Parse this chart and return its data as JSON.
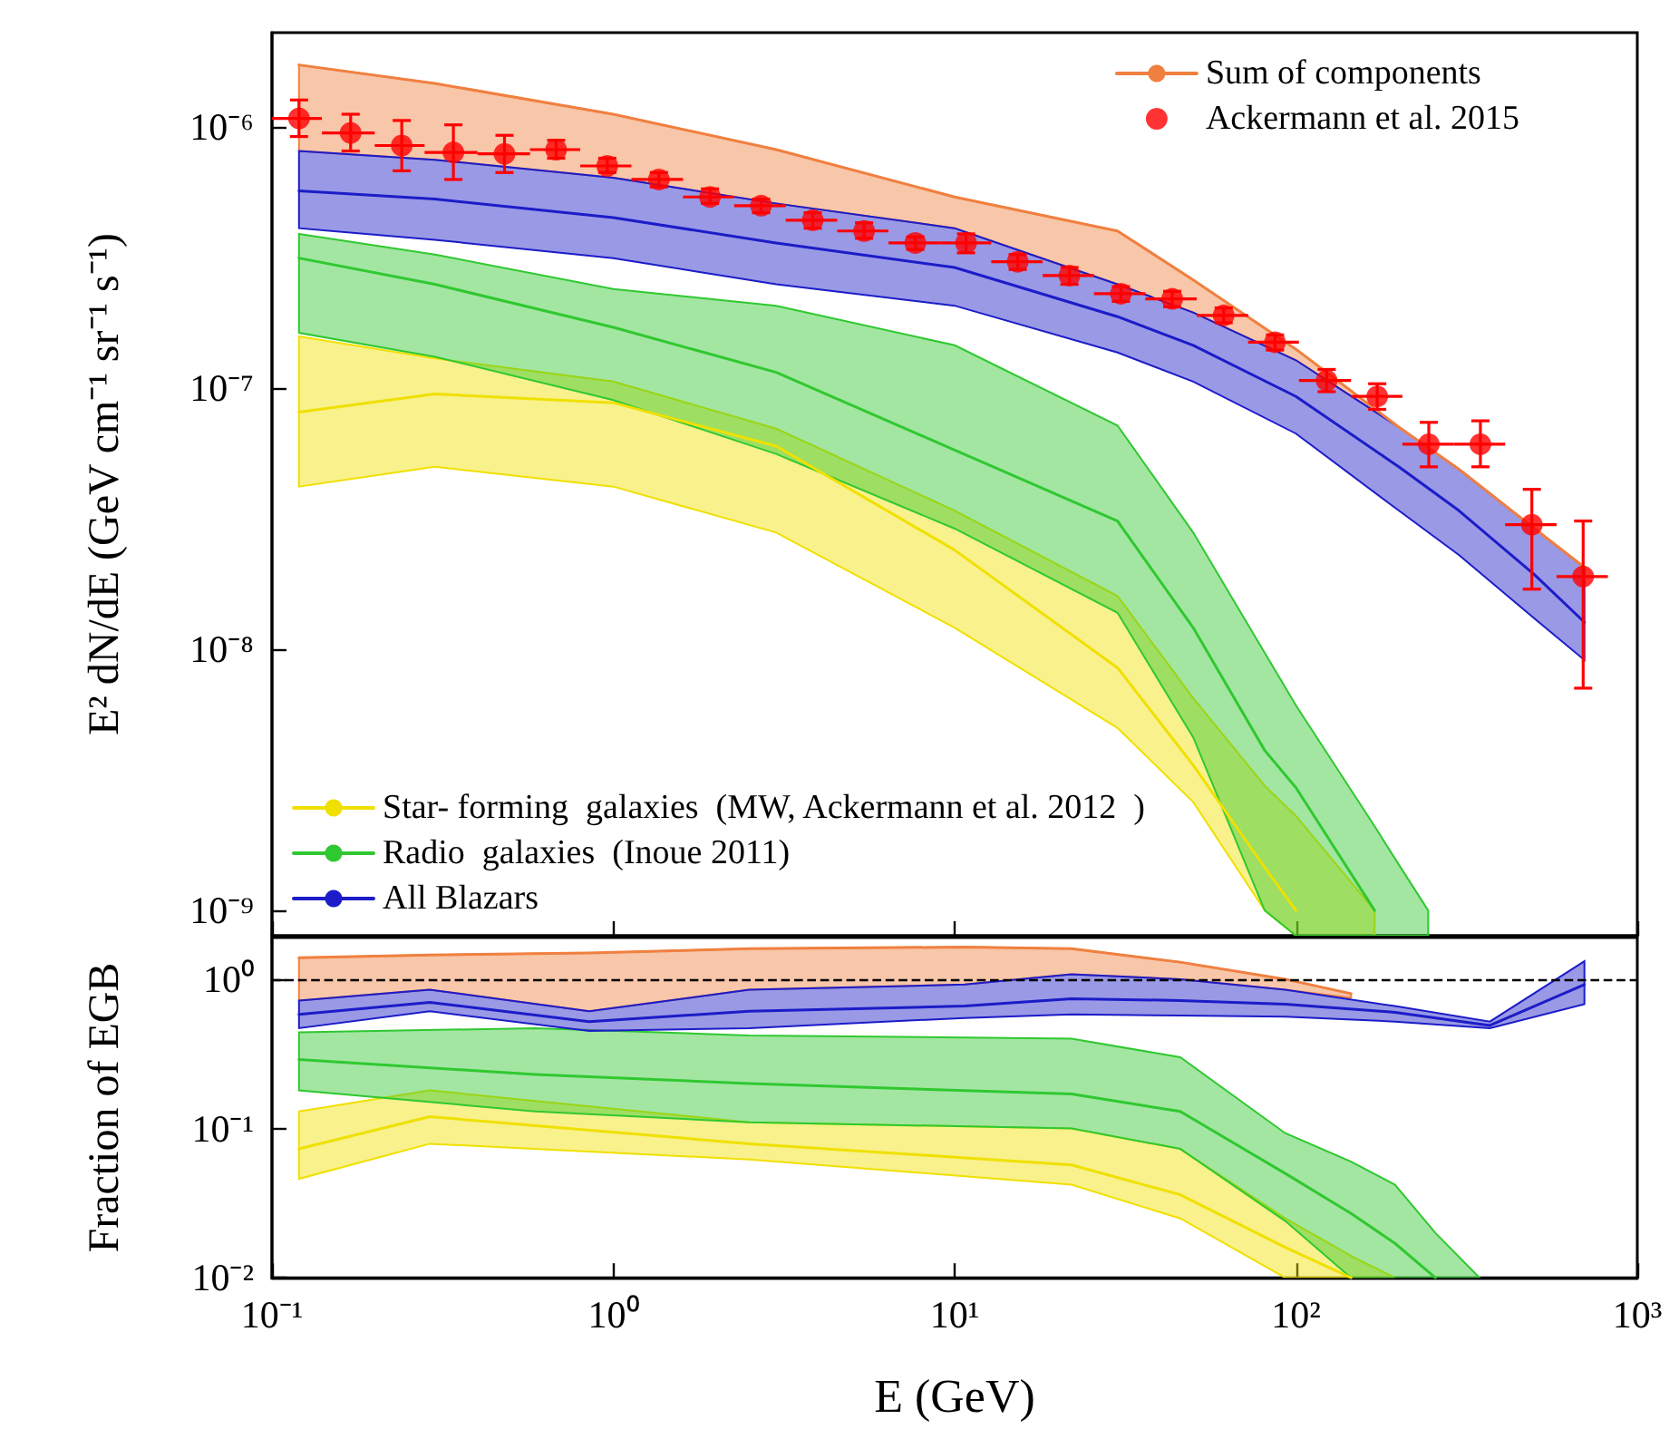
{
  "chart_data": [
    {
      "type": "line",
      "ylabel": "E² dN/dE (GeV cm⁻¹ sr⁻¹ s⁻¹)",
      "log": "xy",
      "marker": "none",
      "legend": "top right",
      "tick_labels": "y",
      "xlim": [
        0.1,
        1000
      ],
      "xticks": [
        {
          "value": 0.1,
          "label": null
        },
        {
          "value": 1,
          "label": null
        },
        {
          "value": 10,
          "label": null
        },
        {
          "value": 100,
          "label": null
        },
        {
          "value": 1000,
          "label": null
        }
      ],
      "ylim": [
        8e-10,
        2.3e-06
      ],
      "yticks": [
        {
          "value": 1e-09,
          "label": "10⁻⁹"
        },
        {
          "value": 1e-08,
          "label": "10⁻⁸"
        },
        {
          "value": 1e-07,
          "label": "10⁻⁷"
        },
        {
          "value": 1e-06,
          "label": "10⁻⁶"
        }
      ],
      "series": [
        {
          "name": "Sum of components",
          "color": "#f08040",
          "x": [
            0.12,
            0.3,
            1,
            3,
            10,
            30,
            50,
            100,
            200,
            300,
            500,
            700
          ],
          "values": [
            1.73e-06,
            1.47e-06,
            1.12e-06,
            8.2e-07,
            5.4e-07,
            4e-07,
            2.6e-07,
            1.41e-07,
            7.1e-08,
            4.9e-08,
            2.9e-08,
            2.06e-08
          ],
          "upper": [
            1.73e-06,
            1.47e-06,
            1.12e-06,
            8.2e-07,
            5.4e-07,
            4e-07,
            2.6e-07,
            1.41e-07,
            7.1e-08,
            4.9e-08,
            2.9e-08,
            2.06e-08
          ],
          "lower": [
            8.1e-07,
            7.5e-07,
            6.4e-07,
            5.1e-07,
            4.1e-07,
            2.5e-07,
            1.95e-07,
            1.28e-07,
            7.1e-08,
            4.9e-08,
            2.9e-08,
            2.06e-08
          ]
        },
        {
          "name": "Ackermann et al. 2015",
          "type": "scatter",
          "marker": "circle",
          "color": "#ff0000",
          "x": [
            0.12,
            0.17,
            0.24,
            0.34,
            0.48,
            0.68,
            0.96,
            1.36,
            1.92,
            2.71,
            3.84,
            5.43,
            7.67,
            10.8,
            15.3,
            21.7,
            30.7,
            43.4,
            61.4,
            86.8,
            123,
            173,
            245,
            347,
            491,
            694
          ],
          "values": [
            1.08e-06,
            9.5e-07,
            8.5e-07,
            8e-07,
            7.9e-07,
            8.2e-07,
            7.1e-07,
            6.3e-07,
            5.4e-07,
            5e-07,
            4.4e-07,
            4e-07,
            3.6e-07,
            3.6e-07,
            3.05e-07,
            2.7e-07,
            2.3e-07,
            2.2e-07,
            1.9e-07,
            1.5e-07,
            1.07e-07,
            9.3e-08,
            6.1e-08,
            6.1e-08,
            3e-08,
            1.9e-08
          ],
          "errors": [
            [
              9.2e-07,
              1.27e-06
            ],
            [
              8.1e-07,
              1.12e-06
            ],
            [
              6.8e-07,
              1.06e-06
            ],
            [
              6.3e-07,
              1.02e-06
            ],
            [
              6.7e-07,
              9.3e-07
            ],
            [
              7.6e-07,
              8.9e-07
            ],
            [
              6.7e-07,
              7.6e-07
            ],
            [
              5.9e-07,
              6.7e-07
            ],
            [
              5.1e-07,
              5.8e-07
            ],
            [
              4.7e-07,
              5.3e-07
            ],
            [
              4.1e-07,
              4.7e-07
            ],
            [
              3.75e-07,
              4.3e-07
            ],
            [
              3.4e-07,
              3.8e-07
            ],
            [
              3.3e-07,
              3.9e-07
            ],
            [
              2.85e-07,
              3.25e-07
            ],
            [
              2.5e-07,
              2.9e-07
            ],
            [
              2.15e-07,
              2.45e-07
            ],
            [
              2.05e-07,
              2.35e-07
            ],
            [
              1.78e-07,
              2.03e-07
            ],
            [
              1.4e-07,
              1.6e-07
            ],
            [
              9.7e-08,
              1.18e-07
            ],
            [
              8.3e-08,
              1.04e-07
            ],
            [
              5e-08,
              7.4e-08
            ],
            [
              5e-08,
              7.5e-08
            ],
            [
              1.7e-08,
              4.1e-08
            ],
            [
              7.1e-09,
              3.1e-08
            ]
          ],
          "xerrors": [
            [
              0.1,
              0.14
            ],
            [
              0.14,
              0.2
            ],
            [
              0.2,
              0.28
            ],
            [
              0.28,
              0.4
            ],
            [
              0.4,
              0.57
            ],
            [
              0.57,
              0.8
            ],
            [
              0.8,
              1.13
            ],
            [
              1.13,
              1.6
            ],
            [
              1.6,
              2.26
            ],
            [
              2.26,
              3.2
            ],
            [
              3.2,
              4.53
            ],
            [
              4.53,
              6.4
            ],
            [
              6.4,
              9.05
            ],
            [
              9.05,
              12.8
            ],
            [
              12.8,
              18.1
            ],
            [
              18.1,
              25.6
            ],
            [
              25.6,
              36.2
            ],
            [
              36.2,
              51.2
            ],
            [
              51.2,
              72.4
            ],
            [
              72.4,
              102
            ],
            [
              102,
              145
            ],
            [
              145,
              205
            ],
            [
              205,
              290
            ],
            [
              290,
              410
            ],
            [
              410,
              580
            ],
            [
              580,
              820
            ]
          ]
        },
        {
          "name": "Star- forming  galaxies  (MW, Ackermann et al. 2012  )",
          "color": "#f0e000",
          "x": [
            0.12,
            0.3,
            1,
            3,
            10,
            30,
            50,
            81,
            100,
            170
          ],
          "values": [
            8.1e-08,
            9.5e-08,
            8.8e-08,
            6e-08,
            2.4e-08,
            8.5e-09,
            3.6e-09,
            1.46e-09,
            1e-09,
            null
          ],
          "upper": [
            1.58e-07,
            1.3e-07,
            1.06e-07,
            7e-08,
            3.4e-08,
            1.6e-08,
            6.5e-09,
            3e-09,
            2.3e-09,
            1e-09
          ],
          "lower": [
            4.2e-08,
            5e-08,
            4.2e-08,
            2.8e-08,
            1.21e-08,
            5e-09,
            2.6e-09,
            1e-09,
            8e-10,
            8e-10
          ]
        },
        {
          "name": "Radio  galaxies  (Inoue 2011)",
          "color": "#30c830",
          "x": [
            0.12,
            0.3,
            1,
            3,
            10,
            30,
            50,
            81,
            100,
            170,
            200,
            244
          ],
          "values": [
            3.15e-07,
            2.5e-07,
            1.71e-07,
            1.15e-07,
            5.8e-08,
            3.1e-08,
            1.21e-08,
            4.1e-09,
            2.95e-09,
            1e-09,
            null,
            null
          ],
          "upper": [
            3.9e-07,
            3.25e-07,
            2.4e-07,
            2.07e-07,
            1.46e-07,
            7.2e-08,
            2.8e-08,
            9.7e-09,
            6.1e-09,
            2.1e-09,
            1.5e-09,
            1e-09
          ],
          "lower": [
            1.63e-07,
            1.32e-07,
            9e-08,
            5.6e-08,
            2.9e-08,
            1.38e-08,
            4.6e-09,
            1e-09,
            8e-10,
            8e-10,
            8e-10,
            8e-10
          ]
        },
        {
          "name": "All Blazars",
          "color": "#1c1cc8",
          "x": [
            0.12,
            0.3,
            1,
            3,
            10,
            30,
            50,
            100,
            200,
            300,
            500,
            700
          ],
          "values": [
            5.7e-07,
            5.3e-07,
            4.5e-07,
            3.6e-07,
            2.9e-07,
            1.88e-07,
            1.46e-07,
            9.3e-08,
            5e-08,
            3.4e-08,
            1.93e-08,
            1.27e-08
          ],
          "upper": [
            8.1e-07,
            7.5e-07,
            6.4e-07,
            5.1e-07,
            4.1e-07,
            2.5e-07,
            1.95e-07,
            1.28e-07,
            7.1e-08,
            4.9e-08,
            2.9e-08,
            2.06e-08
          ],
          "lower": [
            4.1e-07,
            3.7e-07,
            3.15e-07,
            2.5e-07,
            2.07e-07,
            1.37e-07,
            1.06e-07,
            6.7e-08,
            3.4e-08,
            2.3e-08,
            1.31e-08,
            9.1e-09
          ]
        }
      ]
    },
    {
      "type": "line",
      "xlabel": "E (GeV)",
      "ylabel": "Fraction of EGB",
      "log": "xy",
      "marker": "none",
      "xlim": [
        0.1,
        1000
      ],
      "xticks": [
        {
          "value": 0.1,
          "label": "10⁻¹"
        },
        {
          "value": 1,
          "label": "10⁰"
        },
        {
          "value": 10,
          "label": "10¹"
        },
        {
          "value": 100,
          "label": "10²"
        },
        {
          "value": 1000,
          "label": "10³"
        }
      ],
      "ylim": [
        0.01,
        1.9
      ],
      "yticks": [
        {
          "value": 0.01,
          "label": "10⁻²"
        },
        {
          "value": 0.1,
          "label": "10⁻¹"
        },
        {
          "value": 1,
          "label": "10⁰"
        }
      ],
      "ref_lines": [
        {
          "axis": "y",
          "value": 1,
          "color": "#000000",
          "line_style": "dashed"
        }
      ],
      "series": [
        {
          "color": "#f08040",
          "x": [
            0.12,
            0.29,
            0.85,
            2.5,
            10.7,
            22,
            45.8,
            93,
            145
          ],
          "values": [
            1.39,
            1.45,
            1.5,
            1.6,
            1.64,
            1.6,
            1.3,
            1.0,
            0.8
          ],
          "upper": [
            1.39,
            1.45,
            1.5,
            1.6,
            1.64,
            1.6,
            1.3,
            1.0,
            0.8
          ],
          "lower": [
            0.72,
            0.85,
            0.61,
            0.85,
            0.92,
            1.08,
            1.0,
            0.85,
            0.75
          ]
        },
        {
          "color": "#f0e000",
          "x": [
            0.12,
            0.29,
            2.5,
            22,
            45.8,
            93,
            145,
            195
          ],
          "values": [
            0.073,
            0.12,
            0.079,
            0.057,
            0.036,
            0.016,
            0.01,
            null
          ],
          "upper": [
            0.13,
            0.18,
            0.11,
            0.1,
            0.073,
            0.025,
            0.014,
            0.01
          ],
          "lower": [
            0.046,
            0.079,
            0.062,
            0.042,
            0.025,
            0.01,
            0.01,
            0.01
          ]
        },
        {
          "color": "#30c830",
          "x": [
            0.12,
            0.59,
            2.5,
            22,
            45.8,
            93,
            145,
            195,
            256,
            345
          ],
          "values": [
            0.29,
            0.23,
            0.2,
            0.17,
            0.13,
            0.05,
            0.027,
            0.017,
            0.01,
            null
          ],
          "upper": [
            0.44,
            0.47,
            0.42,
            0.4,
            0.3,
            0.093,
            0.06,
            0.042,
            0.02,
            0.01
          ],
          "lower": [
            0.18,
            0.13,
            0.11,
            0.1,
            0.073,
            0.024,
            0.01,
            0.01,
            0.01,
            0.01
          ]
        },
        {
          "color": "#1c1cc8",
          "x": [
            0.12,
            0.29,
            0.85,
            2.5,
            10.7,
            22,
            45.8,
            93,
            195,
            370,
            700
          ],
          "values": [
            0.58,
            0.7,
            0.52,
            0.61,
            0.66,
            0.74,
            0.72,
            0.68,
            0.6,
            0.49,
            0.92
          ],
          "upper": [
            0.72,
            0.85,
            0.61,
            0.85,
            0.92,
            1.08,
            1.0,
            0.85,
            0.66,
            0.52,
            1.32
          ],
          "lower": [
            0.47,
            0.61,
            0.45,
            0.47,
            0.55,
            0.58,
            0.57,
            0.56,
            0.52,
            0.47,
            0.68
          ]
        }
      ]
    }
  ]
}
